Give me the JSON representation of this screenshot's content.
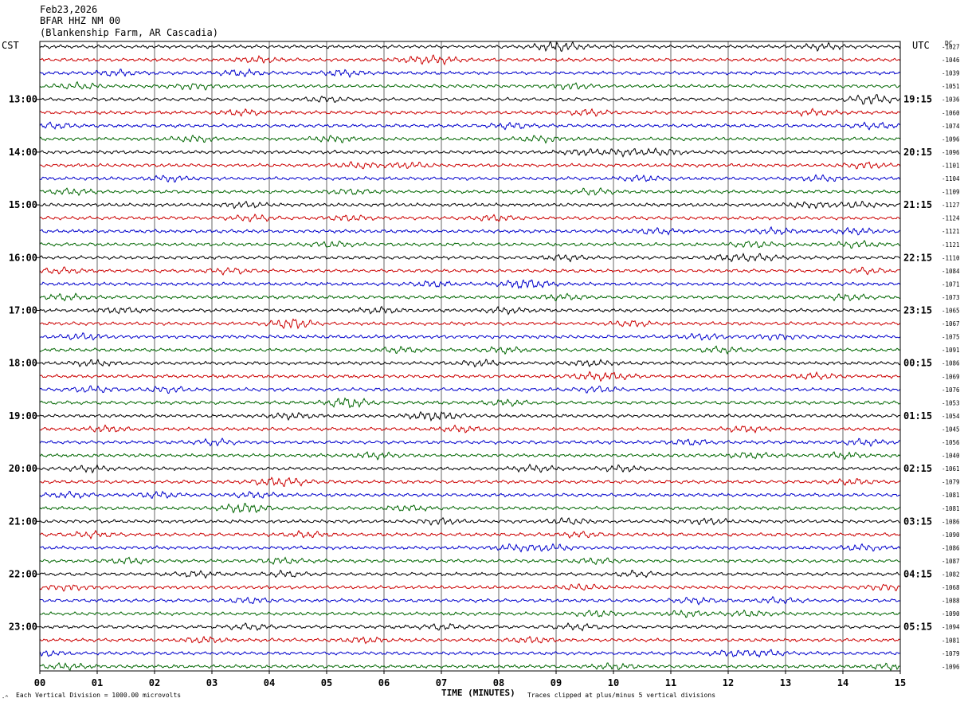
{
  "header": {
    "line1": "Feb23,2026",
    "line2": "BFAR HHZ NM 00",
    "line3": "(Blankenship Farm, AR Cascadia)"
  },
  "labels": {
    "left_zone": "CST",
    "right_zone": "UTC",
    "dc_header": "DC",
    "x_axis": "TIME (MINUTES)",
    "scale_note": "Each Vertical Division = 1000.00 microvolts",
    "clip_note": "Traces clipped at plus/minus 5 vertical divisions",
    "corner_mark": "-^"
  },
  "colors": {
    "trace_cycle": [
      "#000000",
      "#cc0000",
      "#0000cc",
      "#006600"
    ],
    "grid": "#000000",
    "frame": "#000000"
  },
  "chart_data": {
    "type": "line",
    "title": "",
    "subtitle": "",
    "xlabel": "TIME (MINUTES)",
    "ylabel": "",
    "xlim": [
      0,
      15
    ],
    "x_ticks": [
      "00",
      "01",
      "02",
      "03",
      "04",
      "05",
      "06",
      "07",
      "08",
      "09",
      "10",
      "11",
      "12",
      "13",
      "14",
      "15"
    ],
    "grid": true,
    "trace_count": 48,
    "traces_per_hour": 4,
    "left_hour_labels": [
      "13:00",
      "14:00",
      "15:00",
      "16:00",
      "17:00",
      "18:00",
      "19:00",
      "20:00",
      "21:00",
      "22:00",
      "23:00"
    ],
    "right_hour_labels": [
      "19:15",
      "20:15",
      "21:15",
      "22:15",
      "23:15",
      "00:15",
      "01:15",
      "02:15",
      "03:15",
      "04:15",
      "05:15"
    ],
    "hour_label_first_trace": 4,
    "dc_offsets": [
      "-1027",
      "-1046",
      "-1039",
      "-1051",
      "-1036",
      "-1060",
      "-1074",
      "-1096",
      "-1096",
      "-1101",
      "-1104",
      "-1109",
      "-1127",
      "-1124",
      "-1121",
      "-1121",
      "-1110",
      "-1084",
      "-1071",
      "-1073",
      "-1065",
      "-1067",
      "-1075",
      "-1091",
      "-1086",
      "-1069",
      "-1076",
      "-1053",
      "-1054",
      "-1045",
      "-1056",
      "-1040",
      "-1061",
      "-1079",
      "-1081",
      "-1081",
      "-1086",
      "-1090",
      "-1086",
      "-1087",
      "-1082",
      "-1068",
      "-1088",
      "-1090",
      "-1094",
      "-1081",
      "-1079",
      "-1096"
    ]
  }
}
